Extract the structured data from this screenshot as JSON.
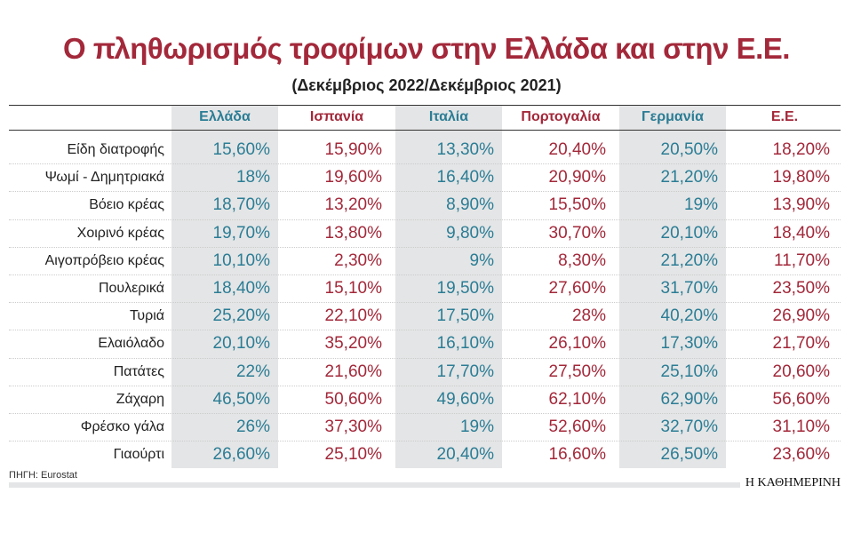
{
  "header": {
    "title": "Ο πληθωρισμός τροφίμων στην Ελλάδα και στην Ε.Ε.",
    "subtitle": "(Δεκέμβριος 2022/Δεκέμβριος 2021)"
  },
  "table": {
    "columns": [
      "Ελλάδα",
      "Ισπανία",
      "Ιταλία",
      "Πορτογαλία",
      "Γερμανία",
      "Ε.Ε."
    ],
    "rows": [
      [
        "Είδη διατροφής",
        "15,60%",
        "15,90%",
        "13,30%",
        "20,40%",
        "20,50%",
        "18,20%"
      ],
      [
        "Ψωμί - Δημητριακά",
        "18%",
        "19,60%",
        "16,40%",
        "20,90%",
        "21,20%",
        "19,80%"
      ],
      [
        "Βόειο κρέας",
        "18,70%",
        "13,20%",
        "8,90%",
        "15,50%",
        "19%",
        "13,90%"
      ],
      [
        "Χοιρινό κρέας",
        "19,70%",
        "13,80%",
        "9,80%",
        "30,70%",
        "20,10%",
        "18,40%"
      ],
      [
        "Αιγοπρόβειο κρέας",
        "10,10%",
        "2,30%",
        "9%",
        "8,30%",
        "21,20%",
        "11,70%"
      ],
      [
        "Πουλερικά",
        "18,40%",
        "15,10%",
        "19,50%",
        "27,60%",
        "31,70%",
        "23,50%"
      ],
      [
        "Τυριά",
        "25,20%",
        "22,10%",
        "17,50%",
        "28%",
        "40,20%",
        "26,90%"
      ],
      [
        "Ελαιόλαδο",
        "20,10%",
        "35,20%",
        "16,10%",
        "26,10%",
        "17,30%",
        "21,70%"
      ],
      [
        "Πατάτες",
        "22%",
        "21,60%",
        "17,70%",
        "27,50%",
        "25,10%",
        "20,60%"
      ],
      [
        "Ζάχαρη",
        "46,50%",
        "50,60%",
        "49,60%",
        "62,10%",
        "62,90%",
        "56,60%"
      ],
      [
        "Φρέσκο γάλα",
        "26%",
        "37,30%",
        "19%",
        "52,60%",
        "32,70%",
        "31,10%"
      ],
      [
        "Γιαούρτι",
        "26,60%",
        "25,10%",
        "20,40%",
        "16,60%",
        "26,50%",
        "23,60%"
      ]
    ]
  },
  "footer": {
    "source": "ΠΗΓΗ: Eurostat",
    "brand": "Η ΚΑΘΗΜΕΡΙΝΗ"
  }
}
